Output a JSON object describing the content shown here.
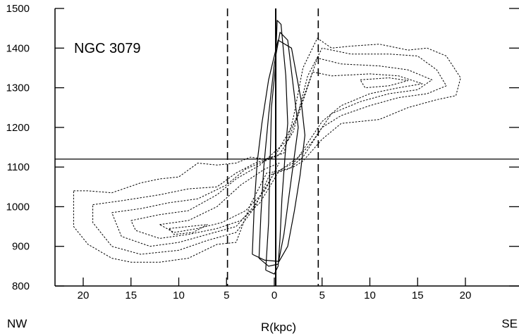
{
  "chart_data": {
    "type": "line",
    "title": "",
    "annotation": "NGC 3079",
    "xlabel": "R(kpc)",
    "xlabel_left": "NW",
    "xlabel_right": "SE",
    "ylabel": "",
    "x_ticks": [
      20,
      15,
      10,
      5,
      0,
      5,
      10,
      15,
      20
    ],
    "x_tick_positions": [
      -20,
      -15,
      -10,
      -5,
      0,
      5,
      10,
      15,
      20
    ],
    "y_ticks": [
      800,
      900,
      1000,
      1100,
      1200,
      1300,
      1400,
      1500
    ],
    "xlim": [
      -25,
      25
    ],
    "ylim": [
      800,
      1500
    ],
    "grid": false,
    "reference_lines": {
      "systemic_velocity": 1120,
      "center_r": 0.15,
      "dashed_r": [
        -4.9,
        4.6
      ]
    },
    "series": [
      {
        "style": "dotted",
        "contours": [
          [
            [
              -21,
              1040
            ],
            [
              -19.5,
              1040
            ],
            [
              -17,
              1035
            ],
            [
              -14,
              1060
            ],
            [
              -12,
              1070
            ],
            [
              -10,
              1075
            ],
            [
              -8,
              1110
            ],
            [
              -6,
              1105
            ],
            [
              -4,
              1110
            ],
            [
              -2.5,
              1125
            ],
            [
              -1,
              1120
            ],
            [
              1,
              1135
            ],
            [
              2,
              1225
            ],
            [
              3,
              1350
            ],
            [
              4.5,
              1425
            ],
            [
              6,
              1400
            ],
            [
              8,
              1405
            ],
            [
              11,
              1410
            ],
            [
              14,
              1395
            ],
            [
              16,
              1400
            ],
            [
              18,
              1380
            ],
            [
              19.5,
              1325
            ],
            [
              19,
              1280
            ],
            [
              17,
              1270
            ],
            [
              14,
              1250
            ],
            [
              11,
              1220
            ],
            [
              9,
              1215
            ],
            [
              7,
              1210
            ],
            [
              5,
              1170
            ],
            [
              3,
              1115
            ],
            [
              2,
              1100
            ],
            [
              0.5,
              1090
            ],
            [
              -0.8,
              1085
            ],
            [
              -2.5,
              1005
            ],
            [
              -4,
              910
            ],
            [
              -6,
              905
            ],
            [
              -9,
              870
            ],
            [
              -12,
              860
            ],
            [
              -15,
              860
            ],
            [
              -17,
              870
            ],
            [
              -19.5,
              905
            ],
            [
              -21,
              950
            ],
            [
              -21,
              1040
            ]
          ],
          [
            [
              -19,
              1005
            ],
            [
              -16,
              1015
            ],
            [
              -12,
              1030
            ],
            [
              -9,
              1045
            ],
            [
              -6,
              1050
            ],
            [
              -4,
              1085
            ],
            [
              -2,
              1110
            ],
            [
              0.5,
              1130
            ],
            [
              2,
              1190
            ],
            [
              3.5,
              1330
            ],
            [
              5,
              1400
            ],
            [
              8,
              1385
            ],
            [
              12,
              1385
            ],
            [
              15,
              1380
            ],
            [
              17,
              1345
            ],
            [
              18,
              1305
            ],
            [
              16,
              1285
            ],
            [
              13,
              1275
            ],
            [
              10,
              1255
            ],
            [
              7,
              1230
            ],
            [
              5,
              1200
            ],
            [
              3,
              1125
            ],
            [
              1.5,
              1095
            ],
            [
              -0.5,
              1080
            ],
            [
              -2,
              1000
            ],
            [
              -4,
              935
            ],
            [
              -7,
              915
            ],
            [
              -10,
              890
            ],
            [
              -14,
              880
            ],
            [
              -17,
              900
            ],
            [
              -19,
              960
            ],
            [
              -19,
              1005
            ]
          ],
          [
            [
              -17,
              985
            ],
            [
              -14,
              995
            ],
            [
              -11,
              1010
            ],
            [
              -8,
              1020
            ],
            [
              -5,
              1055
            ],
            [
              -3,
              1095
            ],
            [
              0,
              1125
            ],
            [
              2.5,
              1230
            ],
            [
              4.5,
              1375
            ],
            [
              7,
              1360
            ],
            [
              11,
              1355
            ],
            [
              14,
              1345
            ],
            [
              16.5,
              1320
            ],
            [
              15,
              1295
            ],
            [
              12,
              1285
            ],
            [
              9,
              1265
            ],
            [
              6,
              1235
            ],
            [
              4,
              1165
            ],
            [
              2,
              1110
            ],
            [
              0,
              1085
            ],
            [
              -2,
              1005
            ],
            [
              -4,
              950
            ],
            [
              -7,
              930
            ],
            [
              -10,
              910
            ],
            [
              -13,
              900
            ],
            [
              -16,
              925
            ],
            [
              -17,
              985
            ]
          ],
          [
            [
              -15,
              965
            ],
            [
              -12,
              980
            ],
            [
              -9,
              990
            ],
            [
              -6,
              1030
            ],
            [
              -4,
              1070
            ],
            [
              -1.5,
              1105
            ],
            [
              1.5,
              1170
            ],
            [
              4,
              1340
            ],
            [
              6,
              1330
            ],
            [
              10,
              1335
            ],
            [
              13,
              1330
            ],
            [
              15.5,
              1310
            ],
            [
              13,
              1300
            ],
            [
              10,
              1285
            ],
            [
              7,
              1255
            ],
            [
              5,
              1215
            ],
            [
              2.5,
              1125
            ],
            [
              0.5,
              1090
            ],
            [
              -1.5,
              1010
            ],
            [
              -3.5,
              965
            ],
            [
              -6,
              945
            ],
            [
              -9,
              930
            ],
            [
              -12,
              920
            ],
            [
              -14.5,
              940
            ],
            [
              -15,
              965
            ]
          ],
          [
            [
              -12,
              955
            ],
            [
              -9,
              965
            ],
            [
              -6,
              1000
            ],
            [
              -3.5,
              1055
            ],
            [
              -1,
              1095
            ],
            [
              0.5,
              1110
            ],
            [
              -1,
              1040
            ],
            [
              -3,
              990
            ],
            [
              -5.5,
              960
            ],
            [
              -8,
              945
            ],
            [
              -10.5,
              935
            ],
            [
              -12,
              955
            ]
          ],
          [
            [
              -11,
              945
            ],
            [
              -9,
              950
            ],
            [
              -7,
              955
            ],
            [
              -8.5,
              935
            ],
            [
              -10.5,
              930
            ],
            [
              -11,
              945
            ]
          ],
          [
            [
              9,
              1320
            ],
            [
              12,
              1325
            ],
            [
              14,
              1318
            ],
            [
              12,
              1305
            ],
            [
              9.5,
              1300
            ],
            [
              9,
              1320
            ]
          ]
        ]
      },
      {
        "style": "solid",
        "contours": [
          [
            [
              -0.9,
              840
            ],
            [
              -0.6,
              960
            ],
            [
              -0.5,
              1060
            ],
            [
              -0.4,
              1150
            ],
            [
              -0.3,
              1250
            ],
            [
              0.1,
              1350
            ],
            [
              0.3,
              1470
            ],
            [
              0.7,
              1460
            ],
            [
              1.2,
              1330
            ],
            [
              1.4,
              1210
            ],
            [
              1.1,
              1120
            ],
            [
              0.8,
              1020
            ],
            [
              0.6,
              920
            ],
            [
              0.4,
              850
            ],
            [
              0,
              830
            ],
            [
              -0.9,
              840
            ]
          ],
          [
            [
              -1.6,
              870
            ],
            [
              -1.4,
              980
            ],
            [
              -1.1,
              1100
            ],
            [
              -0.6,
              1230
            ],
            [
              0,
              1360
            ],
            [
              0.6,
              1440
            ],
            [
              1.4,
              1420
            ],
            [
              2.1,
              1280
            ],
            [
              2.5,
              1200
            ],
            [
              2,
              1110
            ],
            [
              1.5,
              1020
            ],
            [
              1,
              930
            ],
            [
              0.4,
              855
            ],
            [
              -0.6,
              850
            ],
            [
              -1.6,
              870
            ]
          ],
          [
            [
              -2.3,
              880
            ],
            [
              -2.1,
              1000
            ],
            [
              -1.8,
              1110
            ],
            [
              -1.3,
              1210
            ],
            [
              -0.6,
              1320
            ],
            [
              0.4,
              1420
            ],
            [
              1.8,
              1400
            ],
            [
              2.8,
              1270
            ],
            [
              3.2,
              1180
            ],
            [
              2.7,
              1080
            ],
            [
              2.1,
              990
            ],
            [
              1.4,
              900
            ],
            [
              0.5,
              862
            ],
            [
              -1,
              865
            ],
            [
              -2.3,
              880
            ]
          ]
        ]
      }
    ]
  }
}
